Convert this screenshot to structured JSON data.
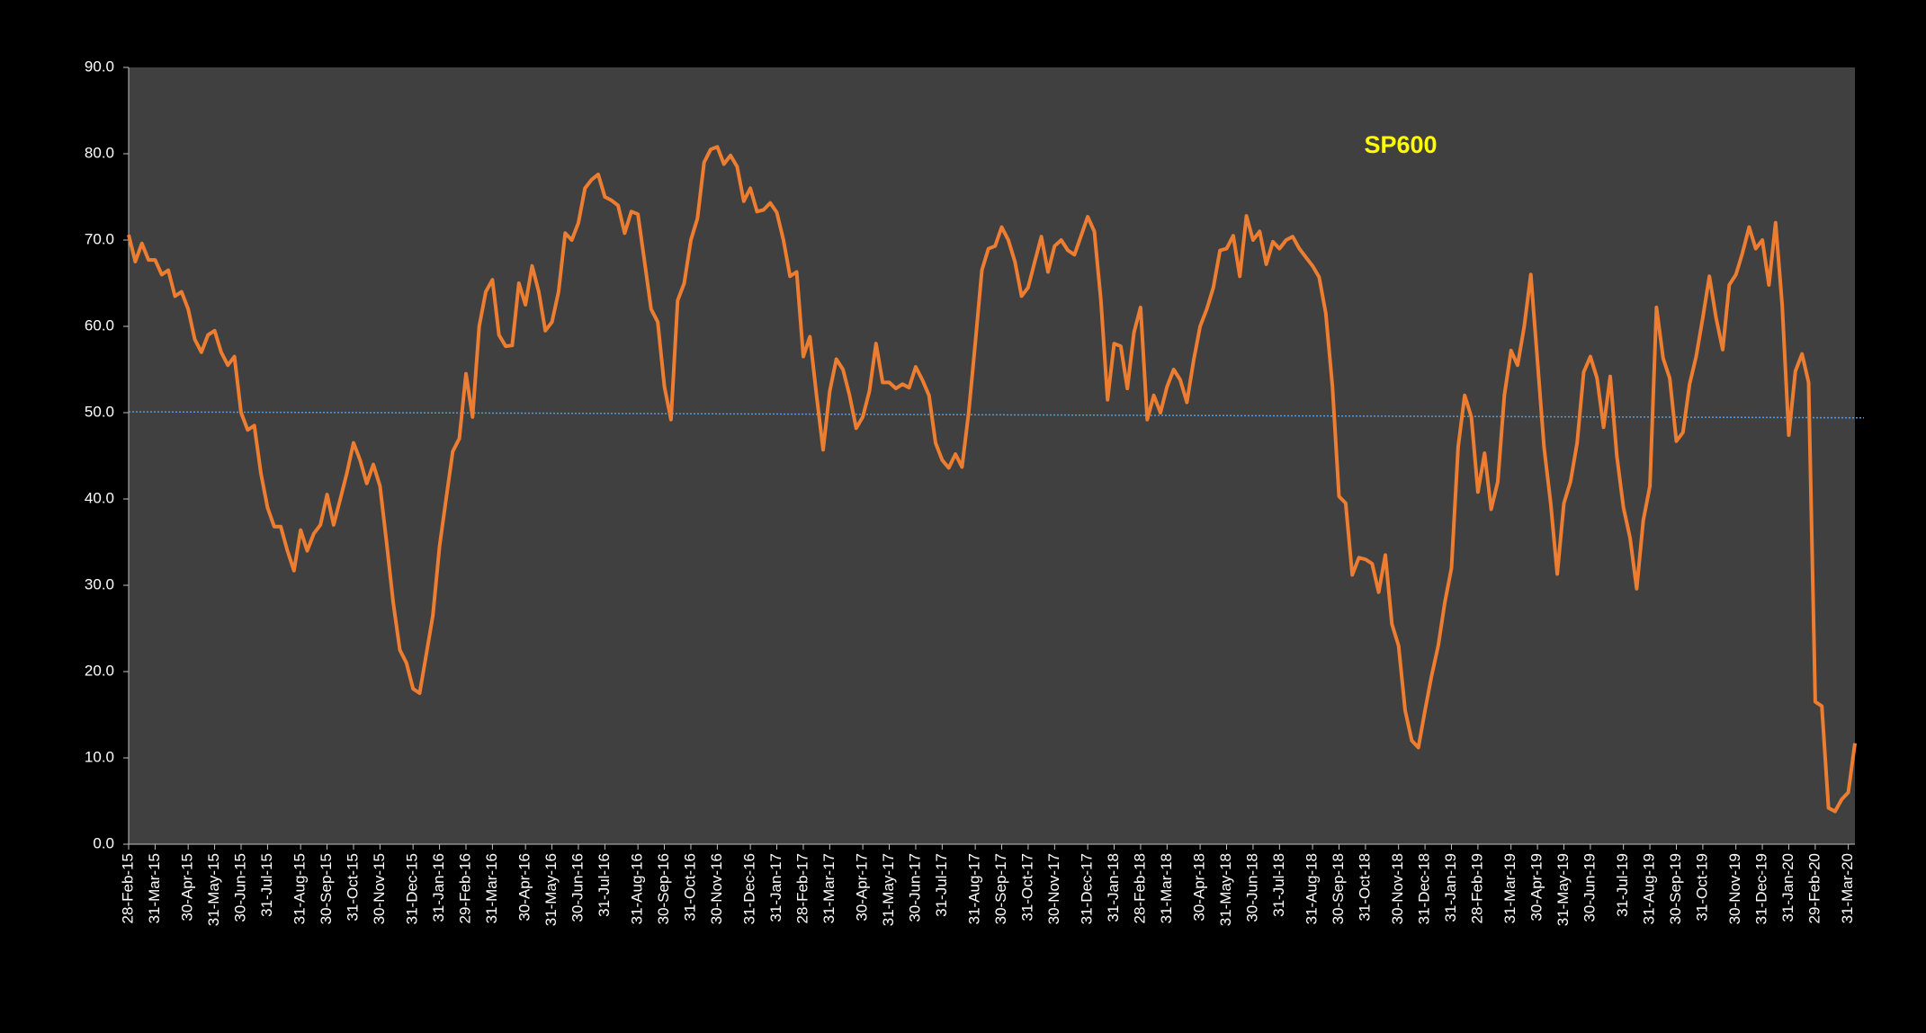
{
  "chart_data": {
    "type": "line",
    "title": "SP600",
    "title_color": "#ffff00",
    "categories": [
      "28-Feb-15",
      null,
      null,
      null,
      "31-Mar-15",
      null,
      null,
      null,
      null,
      "30-Apr-15",
      null,
      null,
      null,
      "31-May-15",
      null,
      null,
      null,
      "30-Jun-15",
      null,
      null,
      null,
      "31-Jul-15",
      null,
      null,
      null,
      null,
      "31-Aug-15",
      null,
      null,
      null,
      "30-Sep-15",
      null,
      null,
      null,
      "31-Oct-15",
      null,
      null,
      null,
      "30-Nov-15",
      null,
      null,
      null,
      null,
      "31-Dec-15",
      null,
      null,
      null,
      "31-Jan-16",
      null,
      null,
      null,
      "29-Feb-16",
      null,
      null,
      null,
      "31-Mar-16",
      null,
      null,
      null,
      null,
      "30-Apr-16",
      null,
      null,
      null,
      "31-May-16",
      null,
      null,
      null,
      "30-Jun-16",
      null,
      null,
      null,
      "31-Jul-16",
      null,
      null,
      null,
      null,
      "31-Aug-16",
      null,
      null,
      null,
      "30-Sep-16",
      null,
      null,
      null,
      "31-Oct-16",
      null,
      null,
      null,
      "30-Nov-16",
      null,
      null,
      null,
      null,
      "31-Dec-16",
      null,
      null,
      null,
      "31-Jan-17",
      null,
      null,
      null,
      "28-Feb-17",
      null,
      null,
      null,
      "31-Mar-17",
      null,
      null,
      null,
      null,
      "30-Apr-17",
      null,
      null,
      null,
      "31-May-17",
      null,
      null,
      null,
      "30-Jun-17",
      null,
      null,
      null,
      "31-Jul-17",
      null,
      null,
      null,
      null,
      "31-Aug-17",
      null,
      null,
      null,
      "30-Sep-17",
      null,
      null,
      null,
      "31-Oct-17",
      null,
      null,
      null,
      "30-Nov-17",
      null,
      null,
      null,
      null,
      "31-Dec-17",
      null,
      null,
      null,
      "31-Jan-18",
      null,
      null,
      null,
      "28-Feb-18",
      null,
      null,
      null,
      "31-Mar-18",
      null,
      null,
      null,
      null,
      "30-Apr-18",
      null,
      null,
      null,
      "31-May-18",
      null,
      null,
      null,
      "30-Jun-18",
      null,
      null,
      null,
      "31-Jul-18",
      null,
      null,
      null,
      null,
      "31-Aug-18",
      null,
      null,
      null,
      "30-Sep-18",
      null,
      null,
      null,
      "31-Oct-18",
      null,
      null,
      null,
      null,
      "30-Nov-18",
      null,
      null,
      null,
      "31-Dec-18",
      null,
      null,
      null,
      "31-Jan-19",
      null,
      null,
      null,
      "28-Feb-19",
      null,
      null,
      null,
      null,
      "31-Mar-19",
      null,
      null,
      null,
      "30-Apr-19",
      null,
      null,
      null,
      "31-May-19",
      null,
      null,
      null,
      "30-Jun-19",
      null,
      null,
      null,
      null,
      "31-Jul-19",
      null,
      null,
      null,
      "31-Aug-19",
      null,
      null,
      null,
      "30-Sep-19",
      null,
      null,
      null,
      "31-Oct-19",
      null,
      null,
      null,
      null,
      "30-Nov-19",
      null,
      null,
      null,
      "31-Dec-19",
      null,
      null,
      null,
      "31-Jan-20",
      null,
      null,
      null,
      "29-Feb-20",
      null,
      null,
      null,
      null,
      "31-Mar-20",
      null
    ],
    "series": [
      {
        "name": "SP600",
        "color": "#ed7d31",
        "values": [
          70.6,
          67.5,
          69.6,
          67.7,
          67.7,
          66,
          66.5,
          63.5,
          64,
          62,
          58.5,
          57,
          59,
          59.5,
          57,
          55.5,
          56.5,
          50,
          48,
          48.5,
          43,
          39,
          36.8,
          36.8,
          34,
          31.7,
          36.4,
          34,
          36,
          37,
          40.5,
          37,
          40,
          43,
          46.5,
          44.5,
          41.8,
          44,
          41.5,
          35,
          28,
          22.5,
          21,
          18,
          17.5,
          22,
          26.5,
          34.5,
          40,
          45.5,
          47,
          54.5,
          49.5,
          60,
          64,
          65.4,
          59,
          57.7,
          57.8,
          65,
          62.5,
          67,
          64,
          59.5,
          60.5,
          64,
          70.8,
          70,
          72,
          76,
          77,
          77.6,
          75,
          74.6,
          74,
          70.8,
          73.3,
          73,
          67.5,
          62,
          60.5,
          53,
          49.2,
          63,
          65,
          70,
          72.5,
          79,
          80.5,
          80.8,
          78.8,
          79.8,
          78.5,
          74.5,
          76,
          73.3,
          73.5,
          74.3,
          73.2,
          70,
          65.8,
          66.3,
          56.5,
          58.8,
          52,
          45.7,
          52.5,
          56.2,
          55,
          52,
          48.2,
          49.5,
          52.5,
          58,
          53.5,
          53.5,
          52.8,
          53.3,
          52.9,
          55.3,
          53.8,
          52,
          46.5,
          44.5,
          43.6,
          45.2,
          43.7,
          50,
          58,
          66.5,
          69,
          69.3,
          71.5,
          70,
          67.5,
          63.5,
          64.5,
          67.5,
          70.4,
          66.3,
          69.3,
          70,
          68.8,
          68.3,
          70.5,
          72.7,
          71,
          63,
          51.5,
          58,
          57.7,
          52.8,
          59.3,
          62.2,
          49.2,
          52,
          50,
          53,
          55,
          53.8,
          51.2,
          56,
          60,
          62,
          64.5,
          68.8,
          69,
          70.5,
          65.8,
          72.8,
          70,
          71,
          67.2,
          69.8,
          69,
          70,
          70.4,
          69,
          68,
          67,
          65.7,
          61.5,
          53,
          40.3,
          39.5,
          31.2,
          33.2,
          33,
          32.5,
          29.2,
          33.5,
          25.5,
          23,
          15.5,
          12,
          11.2,
          15.5,
          19.5,
          23,
          28,
          32,
          46,
          52,
          49.5,
          40.8,
          45.3,
          38.8,
          42,
          52,
          57.2,
          55.5,
          60,
          66,
          56,
          46,
          39.5,
          31.3,
          39.5,
          42,
          46.5,
          54.7,
          56.5,
          54,
          48.3,
          54.2,
          45,
          39,
          35.5,
          29.6,
          37.5,
          41.5,
          62.2,
          56.3,
          54,
          46.7,
          47.7,
          53.3,
          56.5,
          61,
          65.8,
          61,
          57.3,
          64.8,
          66,
          68.5,
          71.5,
          69,
          70,
          64.8,
          72,
          62.5,
          47.4,
          54.8,
          56.8,
          53.5,
          16.5,
          16,
          4.2,
          3.8,
          5.2,
          6,
          11.7
        ]
      }
    ],
    "trendline": {
      "start": 50.1,
      "end": 49.4,
      "color": "#5b9bd5"
    },
    "ylim": [
      0,
      90
    ],
    "yticks": [
      {
        "value": 0,
        "label": "0.0"
      },
      {
        "value": 10,
        "label": "10.0"
      },
      {
        "value": 20,
        "label": "20.0"
      },
      {
        "value": 30,
        "label": "30.0"
      },
      {
        "value": 40,
        "label": "40.0"
      },
      {
        "value": 50,
        "label": "50.0"
      },
      {
        "value": 60,
        "label": "60.0"
      },
      {
        "value": 70,
        "label": "70.0"
      },
      {
        "value": 80,
        "label": "80.0"
      },
      {
        "value": 90,
        "label": "90.0"
      }
    ],
    "grid": false
  }
}
